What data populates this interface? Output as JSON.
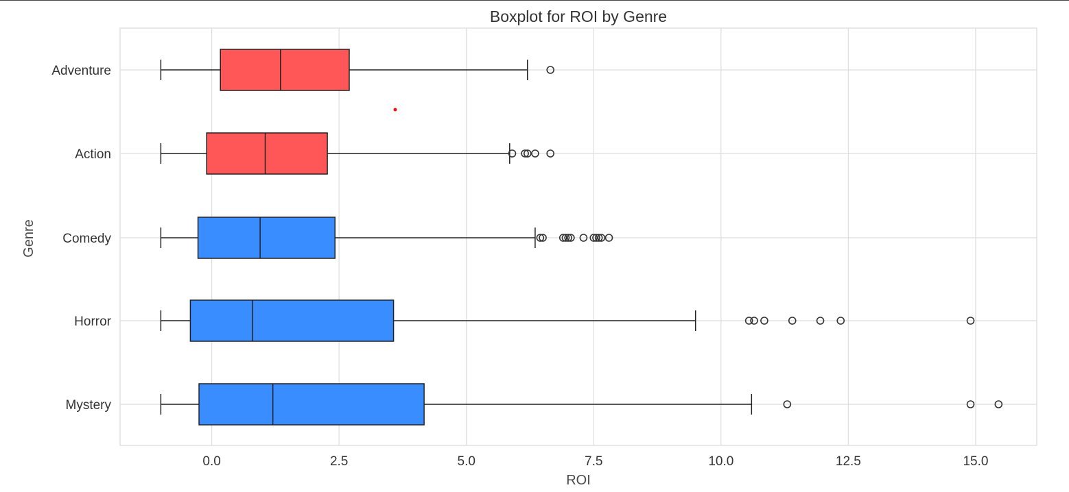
{
  "chart_data": {
    "type": "boxplot",
    "title": "Boxplot for ROI by Genre",
    "xlabel": "ROI",
    "ylabel": "Genre",
    "xlim": [
      -1.8,
      16.2
    ],
    "xticks": [
      0.0,
      2.5,
      5.0,
      7.5,
      10.0,
      12.5,
      15.0
    ],
    "xtick_labels": [
      "0.0",
      "2.5",
      "5.0",
      "7.5",
      "10.0",
      "12.5",
      "15.0"
    ],
    "grid": true,
    "colors": {
      "highlight": "#ff5757",
      "default": "#3a8dff",
      "line": "#222222"
    },
    "categories": [
      "Adventure",
      "Action",
      "Comedy",
      "Horror",
      "Mystery"
    ],
    "boxes": [
      {
        "name": "Adventure",
        "whisker_low": -1.0,
        "q1": 0.17,
        "median": 1.35,
        "q3": 2.7,
        "whisker_high": 6.2,
        "outliers": [
          6.65
        ],
        "color": "#ff5757"
      },
      {
        "name": "Action",
        "whisker_low": -1.0,
        "q1": -0.1,
        "median": 1.05,
        "q3": 2.27,
        "whisker_high": 5.85,
        "outliers": [
          5.9,
          6.15,
          6.2,
          6.35,
          6.65
        ],
        "color": "#ff5757"
      },
      {
        "name": "Comedy",
        "whisker_low": -1.0,
        "q1": -0.27,
        "median": 0.95,
        "q3": 2.42,
        "whisker_high": 6.35,
        "outliers": [
          6.45,
          6.5,
          6.9,
          6.95,
          7.0,
          7.05,
          7.3,
          7.5,
          7.55,
          7.6,
          7.65,
          7.8
        ],
        "color": "#3a8dff"
      },
      {
        "name": "Horror",
        "whisker_low": -1.0,
        "q1": -0.42,
        "median": 0.8,
        "q3": 3.57,
        "whisker_high": 9.5,
        "outliers": [
          10.55,
          10.65,
          10.85,
          11.4,
          11.95,
          12.35,
          14.9
        ],
        "color": "#3a8dff"
      },
      {
        "name": "Mystery",
        "whisker_low": -1.0,
        "q1": -0.25,
        "median": 1.2,
        "q3": 4.17,
        "whisker_high": 10.6,
        "outliers": [
          11.3,
          14.9,
          15.45
        ],
        "color": "#3a8dff"
      }
    ]
  }
}
